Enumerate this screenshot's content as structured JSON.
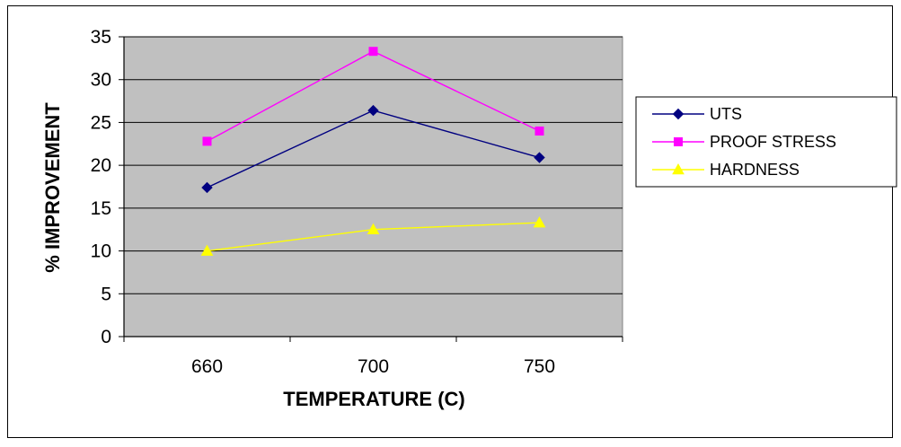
{
  "chart_data": {
    "type": "line",
    "categories": [
      "660",
      "700",
      "750"
    ],
    "series": [
      {
        "name": "UTS",
        "values": [
          17.4,
          26.4,
          20.9
        ],
        "color": "#000080",
        "marker": "diamond"
      },
      {
        "name": "PROOF STRESS",
        "values": [
          22.8,
          33.3,
          24.0
        ],
        "color": "#ff00ff",
        "marker": "square"
      },
      {
        "name": "HARDNESS",
        "values": [
          10.0,
          12.5,
          13.3
        ],
        "color": "#ffff00",
        "marker": "triangle"
      }
    ],
    "xlabel": "TEMPERATURE (C)",
    "ylabel": "% IMPROVEMENT",
    "ylim": [
      0,
      35
    ],
    "yticks": [
      0,
      5,
      10,
      15,
      20,
      25,
      30,
      35
    ],
    "grid": true,
    "plot_background": "#c0c0c0",
    "legend_position": "right"
  }
}
